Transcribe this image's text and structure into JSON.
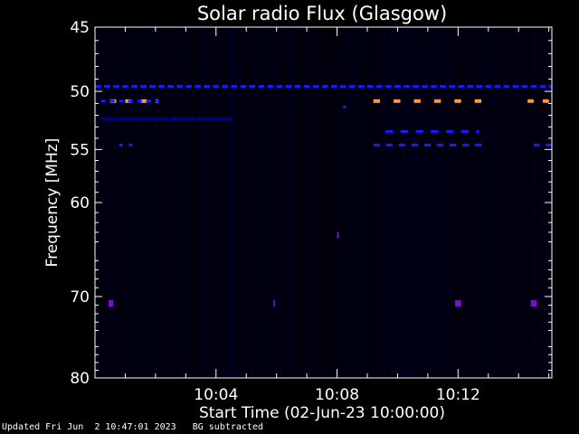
{
  "chart_data": {
    "type": "heatmap",
    "title": "Solar radio Flux (Glasgow)",
    "xlabel": "Start Time (02-Jun-23 10:00:00)",
    "ylabel": "Frequency [MHz]",
    "x_unit": "minutes after 10:00:00",
    "xlim": [
      0,
      15.1
    ],
    "ylim": [
      45,
      80
    ],
    "y_scale": "log",
    "y_direction": "down",
    "x_ticks": [
      {
        "value": 4,
        "label": "10:04"
      },
      {
        "value": 8,
        "label": "10:08"
      },
      {
        "value": 12,
        "label": "10:12"
      }
    ],
    "y_ticks": [
      {
        "value": 45,
        "label": "45"
      },
      {
        "value": 50,
        "label": "50"
      },
      {
        "value": 55,
        "label": "55"
      },
      {
        "value": 60,
        "label": "60"
      },
      {
        "value": 70,
        "label": "70"
      },
      {
        "value": 80,
        "label": "80"
      }
    ],
    "colors": {
      "background": "#000000",
      "low": "#00008c",
      "mid": "#1a1aff",
      "high": "#ff9a40",
      "spot": "#7a10c8",
      "axes": "#ffffff"
    },
    "features": [
      {
        "level": "mid",
        "freq": 49.6,
        "x_start": 0.0,
        "x_end": 15.1,
        "segment": 0.2,
        "gap": 0.1
      },
      {
        "level": "high",
        "freq": 50.8,
        "x_start": 0.5,
        "x_end": 2.1,
        "segment": 0.2,
        "gap": 0.3
      },
      {
        "level": "high",
        "freq": 50.8,
        "x_start": 9.2,
        "x_end": 12.8,
        "segment": 0.22,
        "gap": 0.45
      },
      {
        "level": "high",
        "freq": 50.8,
        "x_start": 14.3,
        "x_end": 15.1,
        "segment": 0.2,
        "gap": 0.3
      },
      {
        "level": "mid",
        "freq": 50.8,
        "x_start": 0.2,
        "x_end": 2.1,
        "segment": 0.15,
        "gap": 0.15
      },
      {
        "level": "mid",
        "freq": 51.3,
        "x_start": 8.2,
        "x_end": 8.3,
        "segment": 0.1,
        "gap": 0.0
      },
      {
        "level": "low",
        "freq": 52.3,
        "x_start": 0.2,
        "x_end": 4.5,
        "segment": 0.12,
        "gap": 0.03
      },
      {
        "level": "mid",
        "freq": 53.4,
        "x_start": 9.6,
        "x_end": 12.7,
        "segment": 0.25,
        "gap": 0.25
      },
      {
        "level": "mid",
        "freq": 54.6,
        "x_start": 0.8,
        "x_end": 1.4,
        "segment": 0.12,
        "gap": 0.2
      },
      {
        "level": "mid",
        "freq": 54.6,
        "x_start": 9.2,
        "x_end": 12.8,
        "segment": 0.22,
        "gap": 0.2
      },
      {
        "level": "mid",
        "freq": 54.6,
        "x_start": 14.5,
        "x_end": 15.1,
        "segment": 0.2,
        "gap": 0.2
      },
      {
        "level": "spot",
        "freq": 63.3,
        "x_start": 8.0,
        "x_end": 8.06,
        "segment": 0.06,
        "gap": 0.0
      },
      {
        "level": "spot",
        "freq": 70.8,
        "x_start": 0.45,
        "x_end": 0.6,
        "segment": 0.15,
        "gap": 0.0
      },
      {
        "level": "spot",
        "freq": 70.8,
        "x_start": 5.9,
        "x_end": 5.95,
        "segment": 0.05,
        "gap": 0.0
      },
      {
        "level": "spot",
        "freq": 70.8,
        "x_start": 11.9,
        "x_end": 12.1,
        "segment": 0.2,
        "gap": 0.0
      },
      {
        "level": "spot",
        "freq": 70.8,
        "x_start": 14.4,
        "x_end": 14.6,
        "segment": 0.2,
        "gap": 0.0
      }
    ]
  },
  "footer": {
    "updated": "Updated Fri Jun  2 10:47:01 2023",
    "mode": "BG subtracted"
  }
}
